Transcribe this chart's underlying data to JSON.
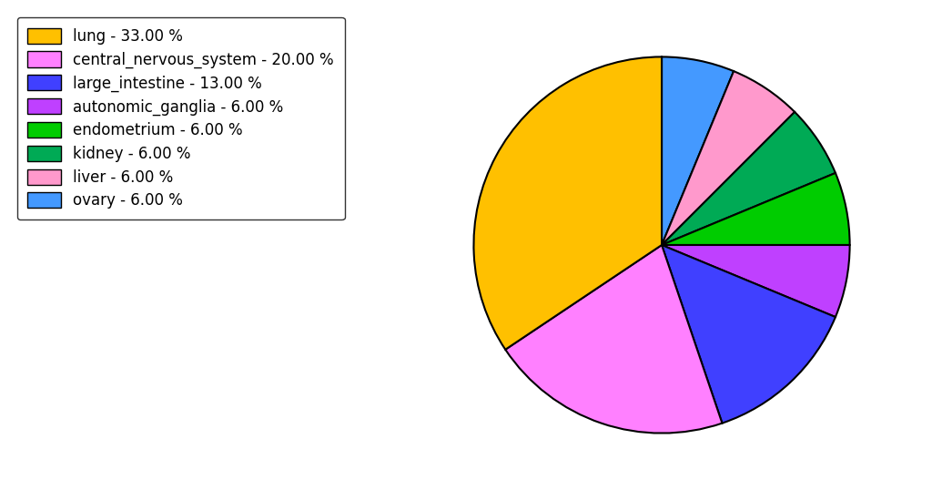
{
  "labels": [
    "lung",
    "central_nervous_system",
    "large_intestine",
    "autonomic_ganglia",
    "endometrium",
    "kidney",
    "liver",
    "ovary"
  ],
  "values": [
    33.0,
    20.0,
    13.0,
    6.0,
    6.0,
    6.0,
    6.0,
    6.0
  ],
  "colors": [
    "#FFC000",
    "#FF80FF",
    "#4040FF",
    "#BF40FF",
    "#00CC00",
    "#00AA55",
    "#FF99CC",
    "#4499FF"
  ],
  "legend_labels": [
    "lung - 33.00 %",
    "central_nervous_system - 20.00 %",
    "large_intestine - 13.00 %",
    "autonomic_ganglia - 6.00 %",
    "endometrium - 6.00 %",
    "kidney - 6.00 %",
    "liver - 6.00 %",
    "ovary - 6.00 %"
  ],
  "figsize": [
    10.24,
    5.38
  ],
  "dpi": 100,
  "startangle": 90,
  "legend_fontsize": 12,
  "pie_order": [
    7,
    6,
    5,
    4,
    3,
    2,
    1,
    0
  ]
}
